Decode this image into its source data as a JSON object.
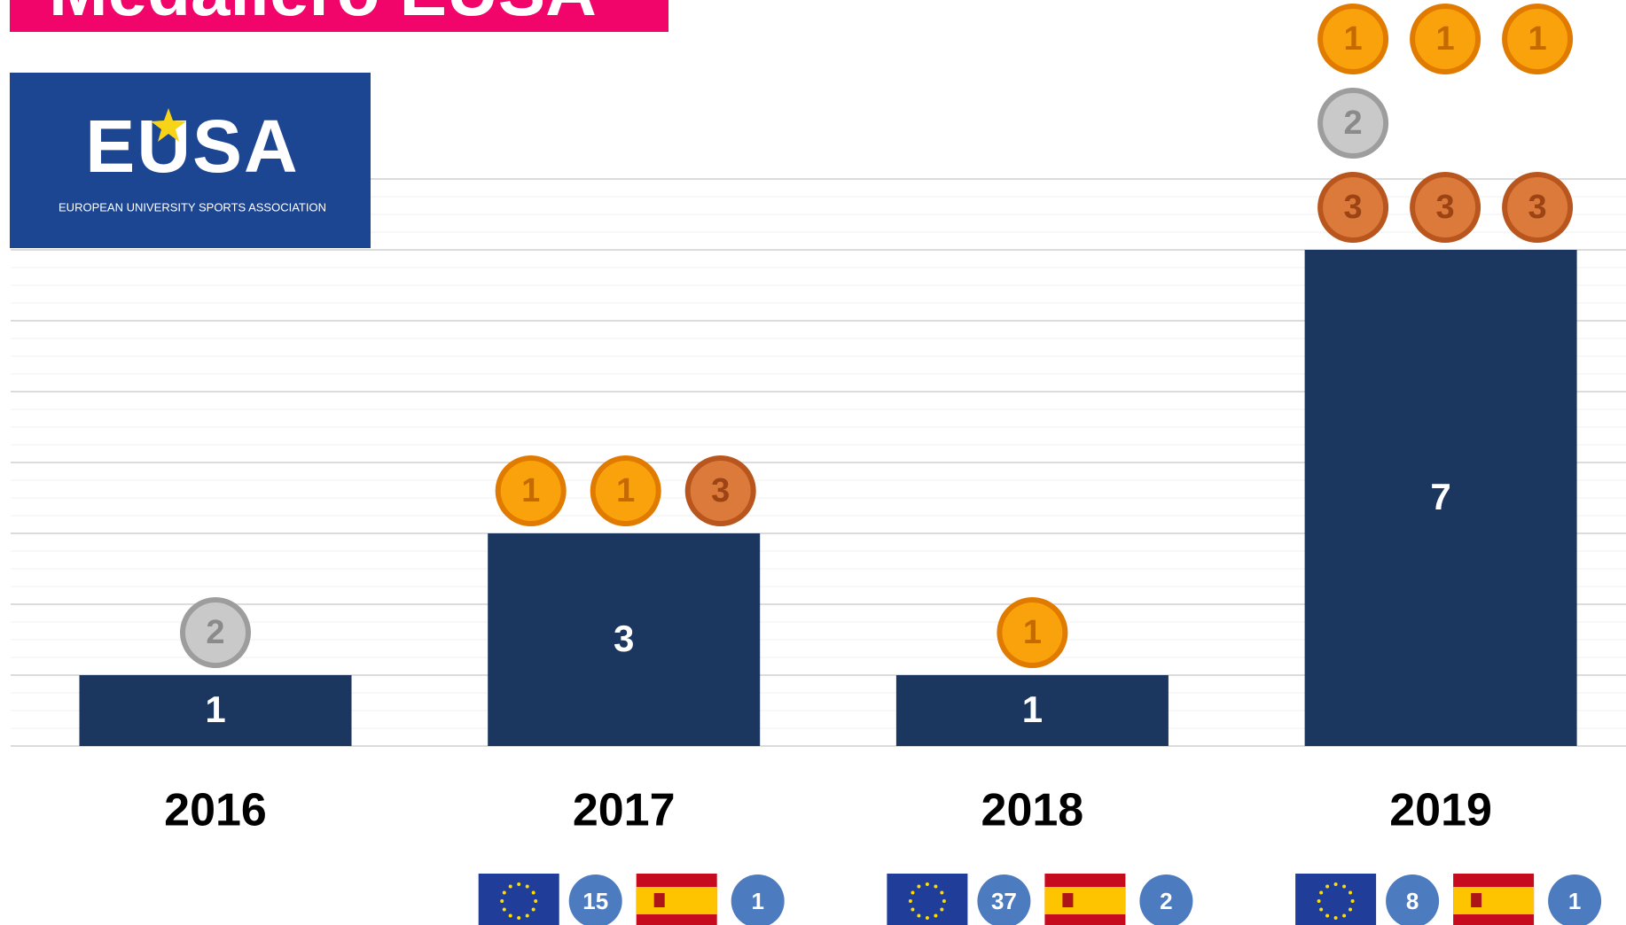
{
  "chart_data": {
    "type": "bar",
    "title": "Medallero EUSA",
    "logo": {
      "name": "EUSA",
      "subtitle": "EUROPEAN UNIVERSITY SPORTS ASSOCIATION"
    },
    "categories": [
      "2016",
      "2017",
      "2018",
      "2019"
    ],
    "values": [
      1,
      3,
      1,
      7
    ],
    "color": "#1b365f",
    "ylim": [
      0,
      8
    ],
    "yticks": [
      0,
      1,
      2,
      3,
      4,
      5,
      6,
      7,
      8
    ],
    "grid": true,
    "medals": [
      [
        2
      ],
      [
        1,
        1,
        3
      ],
      [
        1
      ],
      [
        1,
        1,
        1,
        2,
        3,
        3,
        3
      ]
    ],
    "eu_medals": [
      null,
      15,
      37,
      8
    ],
    "es_medals": [
      null,
      1,
      2,
      1
    ]
  }
}
